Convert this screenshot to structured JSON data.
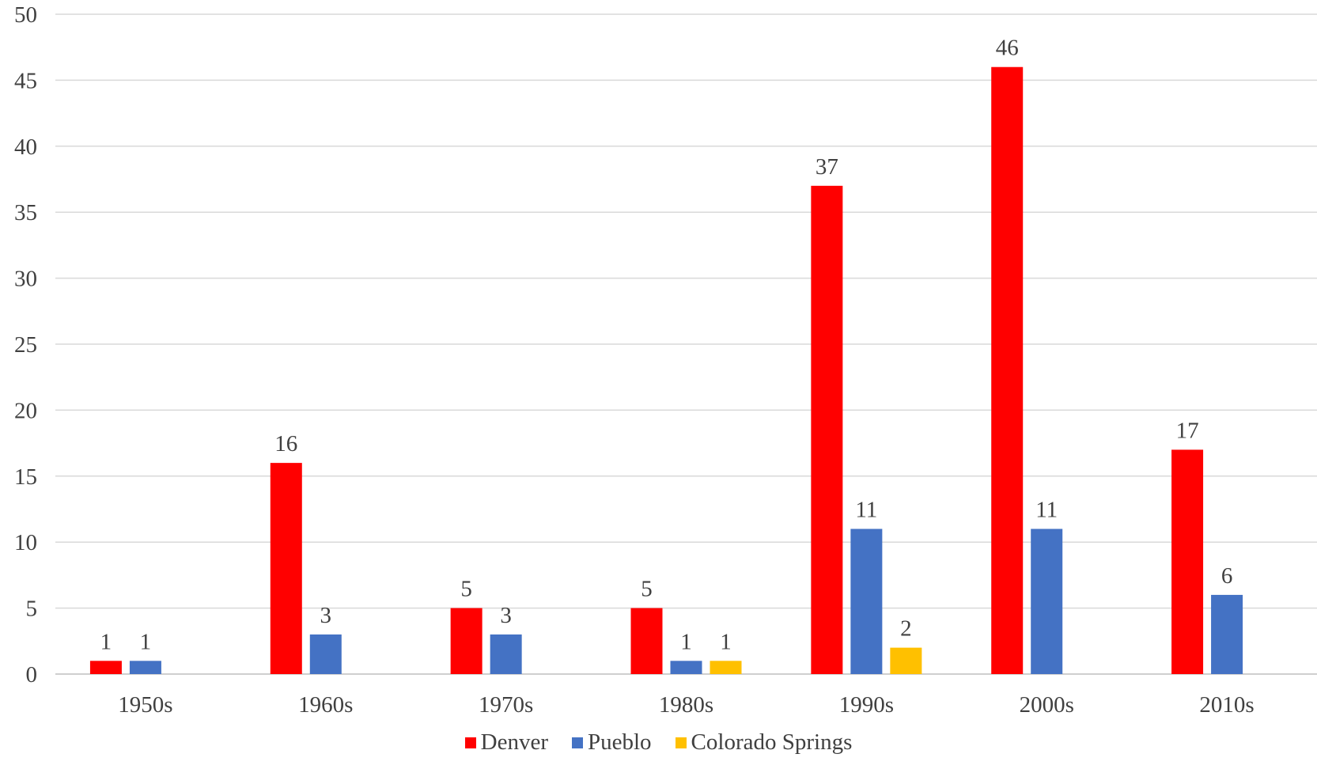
{
  "chart_data": {
    "type": "bar",
    "title": "",
    "xlabel": "",
    "ylabel": "",
    "categories": [
      "1950s",
      "1960s",
      "1970s",
      "1980s",
      "1990s",
      "2000s",
      "2010s"
    ],
    "ylim": [
      0,
      50
    ],
    "yticks": [
      0,
      5,
      10,
      15,
      20,
      25,
      30,
      35,
      40,
      45,
      50
    ],
    "grid": true,
    "legend_position": "bottom",
    "series": [
      {
        "name": "Denver",
        "color": "#ff0000",
        "values": [
          1,
          16,
          5,
          5,
          37,
          46,
          17
        ]
      },
      {
        "name": "Pueblo",
        "color": "#4472c4",
        "values": [
          1,
          3,
          3,
          1,
          11,
          11,
          6
        ]
      },
      {
        "name": "Colorado Springs",
        "color": "#ffc000",
        "values": [
          null,
          null,
          null,
          1,
          2,
          null,
          null
        ]
      }
    ]
  }
}
